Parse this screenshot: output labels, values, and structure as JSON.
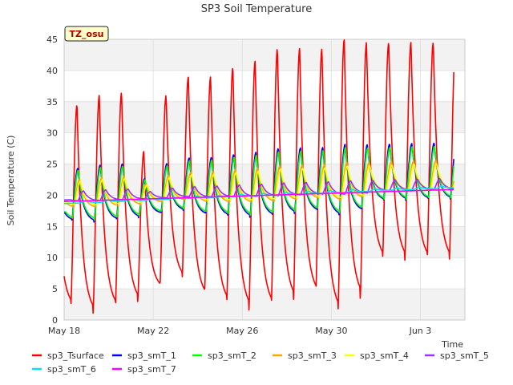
{
  "chart_data": {
    "type": "line",
    "title": "SP3 Soil Temperature",
    "xlabel": "Time",
    "ylabel": "Soil Temperature (C)",
    "site_badge": "TZ_osu",
    "x_start_day": 0,
    "x_end_day": 17.5,
    "xlim": [
      0,
      18
    ],
    "ylim": [
      0,
      45
    ],
    "grid": true,
    "legend_position": "bottom",
    "x_ticks": [
      {
        "day": 0,
        "label": "May 18"
      },
      {
        "day": 4,
        "label": "May 22"
      },
      {
        "day": 8,
        "label": "May 26"
      },
      {
        "day": 12,
        "label": "May 30"
      },
      {
        "day": 16,
        "label": "Jun 3"
      }
    ],
    "y_ticks": [
      0,
      5,
      10,
      15,
      20,
      25,
      30,
      35,
      40,
      45
    ],
    "day_extremes": {
      "sp3_Tsurface": {
        "peaks": [
          34.5,
          36.0,
          36.5,
          27.0,
          36.0,
          39.0,
          39.0,
          40.5,
          41.5,
          43.5,
          43.5,
          43.5,
          45.0,
          44.5
        ],
        "troughs": [
          2.0,
          1.0,
          1.8,
          2.8,
          5.0,
          6.5,
          3.5,
          2.5,
          1.5,
          2.0,
          3.0,
          4.0,
          1.2,
          3.5,
          9.5
        ]
      }
    },
    "series": [
      {
        "name": "sp3_Tsurface",
        "color": "#ff0000",
        "mean": 18,
        "amp_scale": 1.0,
        "lag": 0.0,
        "trend": 0.0
      },
      {
        "name": "sp3_smT_1",
        "color": "#0000ff",
        "mean": 20,
        "amp_scale": 0.26,
        "lag": 0.04,
        "trend": 0.09
      },
      {
        "name": "sp3_smT_2",
        "color": "#00ff00",
        "mean": 20,
        "amp_scale": 0.24,
        "lag": 0.06,
        "trend": 0.09
      },
      {
        "name": "sp3_smT_3",
        "color": "#ffa500",
        "mean": 20.2,
        "amp_scale": 0.14,
        "lag": 0.12,
        "trend": 0.1
      },
      {
        "name": "sp3_smT_4",
        "color": "#ffff00",
        "mean": 20.2,
        "amp_scale": 0.12,
        "lag": 0.15,
        "trend": 0.1
      },
      {
        "name": "sp3_smT_5",
        "color": "#9b30ff",
        "mean": 19.8,
        "amp_scale": 0.05,
        "lag": 0.3,
        "trend": 0.09
      },
      {
        "name": "sp3_smT_6",
        "color": "#00e5ee",
        "mean": 18.8,
        "amp_scale": 0.01,
        "lag": 0.4,
        "trend": 0.14
      },
      {
        "name": "sp3_smT_7",
        "color": "#ff00ff",
        "mean": 19.0,
        "amp_scale": 0.0,
        "lag": 0.0,
        "trend": 0.11
      }
    ]
  }
}
